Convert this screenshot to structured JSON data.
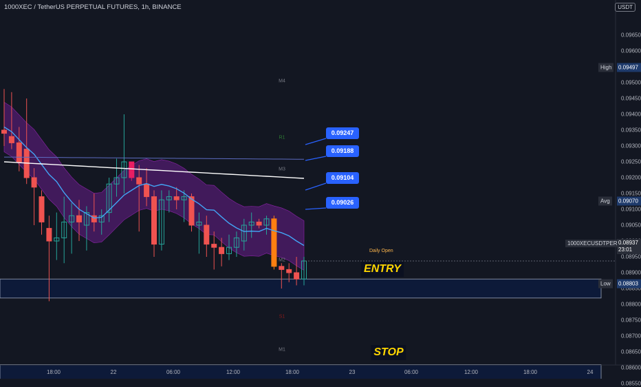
{
  "header": {
    "title": "1000XEC / TetherUS PERPETUAL FUTURES, 1h, BINANCE"
  },
  "currency_button": "USDT",
  "price_axis": [
    "0.09650",
    "0.09600",
    "0.09550",
    "0.09500",
    "0.09450",
    "0.09400",
    "0.09350",
    "0.09300",
    "0.09250",
    "0.09200",
    "0.09150",
    "0.09100",
    "0.09050",
    "0.09000",
    "0.08950",
    "0.08900",
    "0.08850",
    "0.08800",
    "0.08750",
    "0.08700",
    "0.08650",
    "0.08600",
    "0.08550"
  ],
  "time_axis": [
    "18:00",
    "22",
    "06:00",
    "12:00",
    "18:00",
    "23",
    "06:00",
    "12:00",
    "18:00",
    "24"
  ],
  "right_labels": {
    "high": {
      "label": "High",
      "value": "0.09497"
    },
    "avg": {
      "label": "Avg",
      "value": "0.09070"
    },
    "low": {
      "label": "Low",
      "value": "0.08803"
    },
    "current": {
      "symbol": "1000XECUSDTPERP",
      "value": "0.08937",
      "countdown": "23:01"
    }
  },
  "callouts": [
    "0.09247",
    "0.09188",
    "0.09104",
    "0.09026"
  ],
  "pivots": {
    "m4": "M4",
    "r1": "R1",
    "m3": "M3",
    "m2": "M2",
    "s1": "S1",
    "m1": "M1"
  },
  "annotations": {
    "daily_open": "Daily Open",
    "entry": "ENTRY",
    "stop": "STOP"
  },
  "colors": {
    "up": "#26a69a",
    "down": "#ef5350",
    "band": "#7b1fa2",
    "blue_ma": "#42a5f5",
    "white_ma": "#ffffff",
    "callout": "#2962ff",
    "zone": "#0d1b3d",
    "label_yellow": "#ffd600"
  },
  "chart_data": {
    "type": "candlestick",
    "candles": [
      {
        "o": 0.0935,
        "h": 0.0948,
        "l": 0.093,
        "c": 0.0934
      },
      {
        "o": 0.0933,
        "h": 0.0947,
        "l": 0.0929,
        "c": 0.0931
      },
      {
        "o": 0.0931,
        "h": 0.0936,
        "l": 0.0922,
        "c": 0.0925
      },
      {
        "o": 0.0929,
        "h": 0.0945,
        "l": 0.0918,
        "c": 0.092
      },
      {
        "o": 0.092,
        "h": 0.0923,
        "l": 0.0905,
        "c": 0.0917
      },
      {
        "o": 0.0914,
        "h": 0.0916,
        "l": 0.0902,
        "c": 0.0906
      },
      {
        "o": 0.0904,
        "h": 0.0908,
        "l": 0.0881,
        "c": 0.09
      },
      {
        "o": 0.09,
        "h": 0.0909,
        "l": 0.0894,
        "c": 0.0901
      },
      {
        "o": 0.0901,
        "h": 0.0914,
        "l": 0.0893,
        "c": 0.0906
      },
      {
        "o": 0.0906,
        "h": 0.0912,
        "l": 0.0896,
        "c": 0.0908
      },
      {
        "o": 0.0908,
        "h": 0.0913,
        "l": 0.09,
        "c": 0.0906
      },
      {
        "o": 0.0905,
        "h": 0.0911,
        "l": 0.0897,
        "c": 0.0909
      },
      {
        "o": 0.0908,
        "h": 0.0915,
        "l": 0.0903,
        "c": 0.0906
      },
      {
        "o": 0.0906,
        "h": 0.091,
        "l": 0.0902,
        "c": 0.0908
      },
      {
        "o": 0.0909,
        "h": 0.092,
        "l": 0.0906,
        "c": 0.0918
      },
      {
        "o": 0.0918,
        "h": 0.0926,
        "l": 0.0914,
        "c": 0.092
      },
      {
        "o": 0.092,
        "h": 0.094,
        "l": 0.0915,
        "c": 0.0925
      },
      {
        "o": 0.0925,
        "h": 0.0925,
        "l": 0.0919,
        "c": 0.092
      },
      {
        "o": 0.092,
        "h": 0.0924,
        "l": 0.0903,
        "c": 0.0918
      },
      {
        "o": 0.0918,
        "h": 0.0923,
        "l": 0.0911,
        "c": 0.0914
      },
      {
        "o": 0.0914,
        "h": 0.0916,
        "l": 0.0895,
        "c": 0.0899
      },
      {
        "o": 0.0899,
        "h": 0.0916,
        "l": 0.0897,
        "c": 0.0913
      },
      {
        "o": 0.0913,
        "h": 0.0916,
        "l": 0.0909,
        "c": 0.0914
      },
      {
        "o": 0.0914,
        "h": 0.0917,
        "l": 0.091,
        "c": 0.0913
      },
      {
        "o": 0.0913,
        "h": 0.0916,
        "l": 0.0906,
        "c": 0.0914
      },
      {
        "o": 0.0914,
        "h": 0.0915,
        "l": 0.0903,
        "c": 0.0905
      },
      {
        "o": 0.0905,
        "h": 0.0909,
        "l": 0.0896,
        "c": 0.0906
      },
      {
        "o": 0.0905,
        "h": 0.0908,
        "l": 0.0895,
        "c": 0.0899
      },
      {
        "o": 0.0899,
        "h": 0.0903,
        "l": 0.0891,
        "c": 0.0898
      },
      {
        "o": 0.0898,
        "h": 0.0901,
        "l": 0.0892,
        "c": 0.0896
      },
      {
        "o": 0.0896,
        "h": 0.0902,
        "l": 0.0894,
        "c": 0.0898
      },
      {
        "o": 0.0898,
        "h": 0.0903,
        "l": 0.0895,
        "c": 0.0901
      },
      {
        "o": 0.09,
        "h": 0.0907,
        "l": 0.0897,
        "c": 0.0905
      },
      {
        "o": 0.0905,
        "h": 0.0909,
        "l": 0.0901,
        "c": 0.0906
      },
      {
        "o": 0.0906,
        "h": 0.0907,
        "l": 0.0904,
        "c": 0.0905
      },
      {
        "o": 0.0905,
        "h": 0.0908,
        "l": 0.0902,
        "c": 0.0907
      },
      {
        "o": 0.0907,
        "h": 0.0908,
        "l": 0.0891,
        "c": 0.0892
      },
      {
        "o": 0.0892,
        "h": 0.0893,
        "l": 0.0885,
        "c": 0.0891
      },
      {
        "o": 0.0891,
        "h": 0.0893,
        "l": 0.0887,
        "c": 0.089
      },
      {
        "o": 0.089,
        "h": 0.0895,
        "l": 0.0886,
        "c": 0.0888
      },
      {
        "o": 0.0888,
        "h": 0.0895,
        "l": 0.0886,
        "c": 0.08937
      }
    ],
    "indicators": [
      "Keltner band (purple)",
      "blue moving average",
      "white moving average"
    ],
    "zones": [
      {
        "name": "ENTRY",
        "from": 0.0882,
        "to": 0.0888
      },
      {
        "name": "STOP",
        "from": 0.0856,
        "to": 0.0861
      }
    ],
    "ylim": [
      0.0855,
      0.0965
    ],
    "grid": false
  }
}
